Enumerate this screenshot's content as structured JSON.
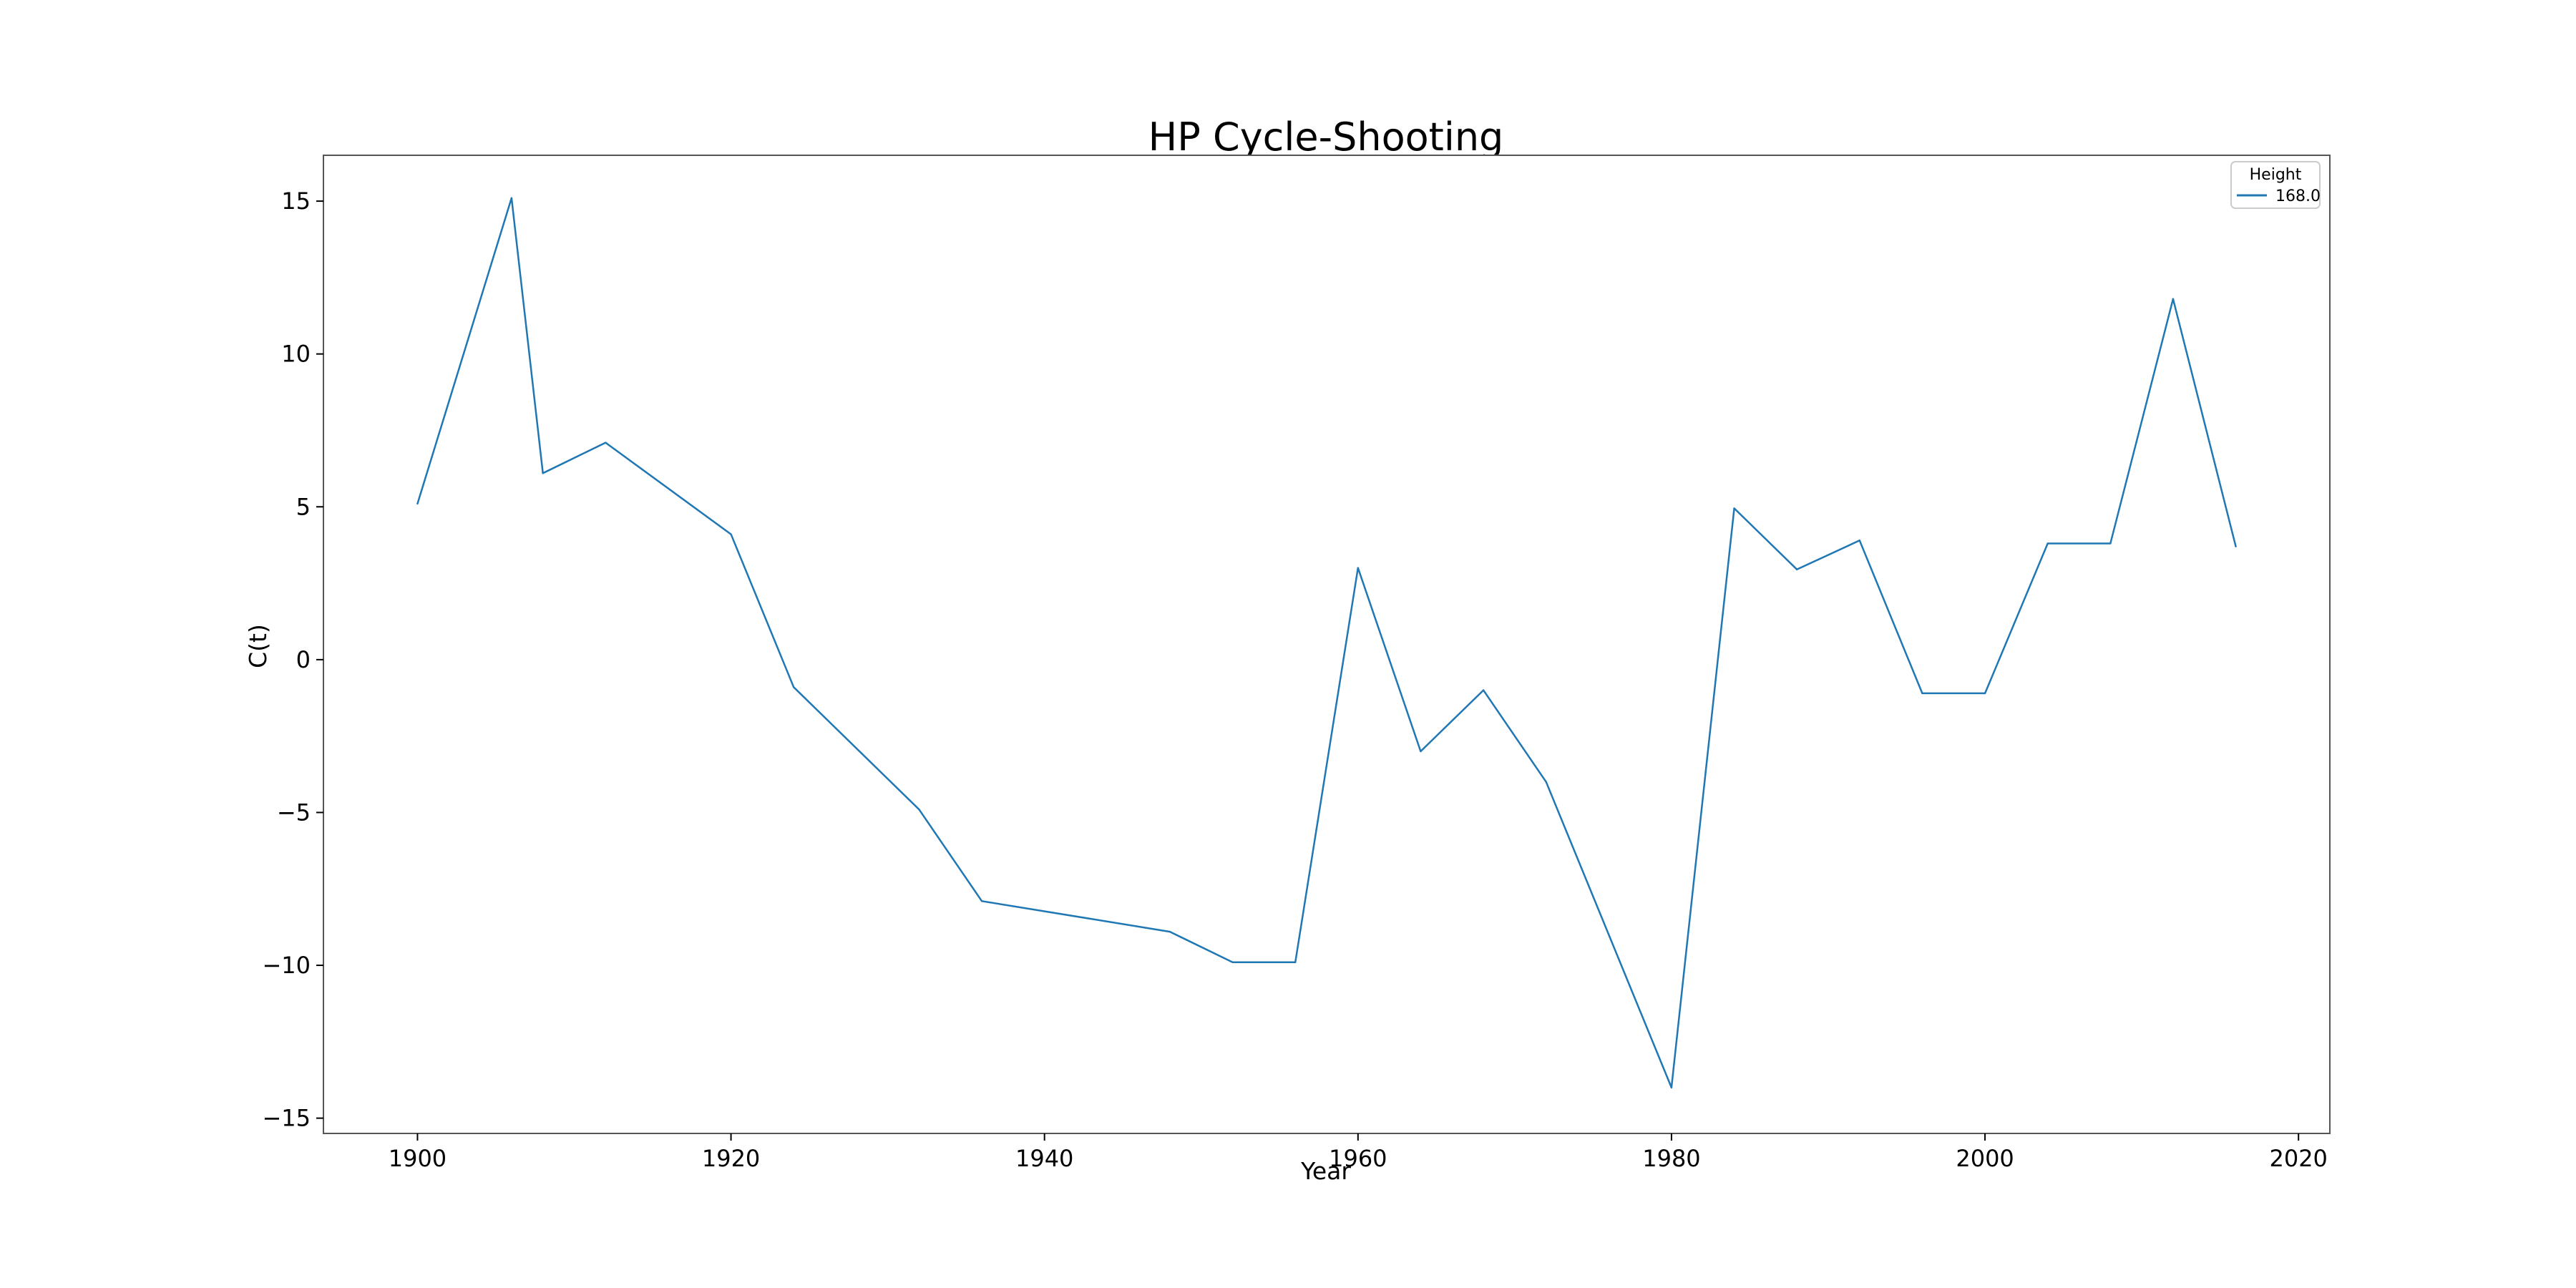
{
  "chart_data": {
    "type": "line",
    "title": "HP Cycle-Shooting",
    "xlabel": "Year",
    "ylabel": "C(t)",
    "xlim": [
      1894,
      2022
    ],
    "ylim": [
      -15.5,
      16.5
    ],
    "xticks": [
      1900,
      1920,
      1940,
      1960,
      1980,
      2000,
      2020
    ],
    "yticks": [
      -15,
      -10,
      -5,
      0,
      5,
      10,
      15
    ],
    "xtick_labels": [
      "1900",
      "1920",
      "1940",
      "1960",
      "1980",
      "2000",
      "2020"
    ],
    "ytick_labels": [
      "−15",
      "−10",
      "−5",
      "0",
      "5",
      "10",
      "15"
    ],
    "grid": false,
    "legend": {
      "title": "Height",
      "position": "top-right"
    },
    "series": [
      {
        "name": "168.0",
        "color": "#1f77b4",
        "x": [
          1900,
          1906,
          1908,
          1912,
          1920,
          1924,
          1932,
          1936,
          1948,
          1952,
          1956,
          1960,
          1964,
          1968,
          1972,
          1980,
          1984,
          1988,
          1992,
          1996,
          2000,
          2004,
          2008,
          2012,
          2016
        ],
        "y": [
          5.1,
          15.1,
          6.1,
          7.1,
          4.1,
          -0.9,
          -4.9,
          -7.9,
          -8.9,
          -9.9,
          -9.9,
          3.0,
          -3.0,
          -1.0,
          -4.0,
          -14.0,
          4.95,
          2.95,
          3.9,
          -1.1,
          -1.1,
          3.8,
          3.8,
          11.8,
          3.7
        ]
      }
    ]
  }
}
